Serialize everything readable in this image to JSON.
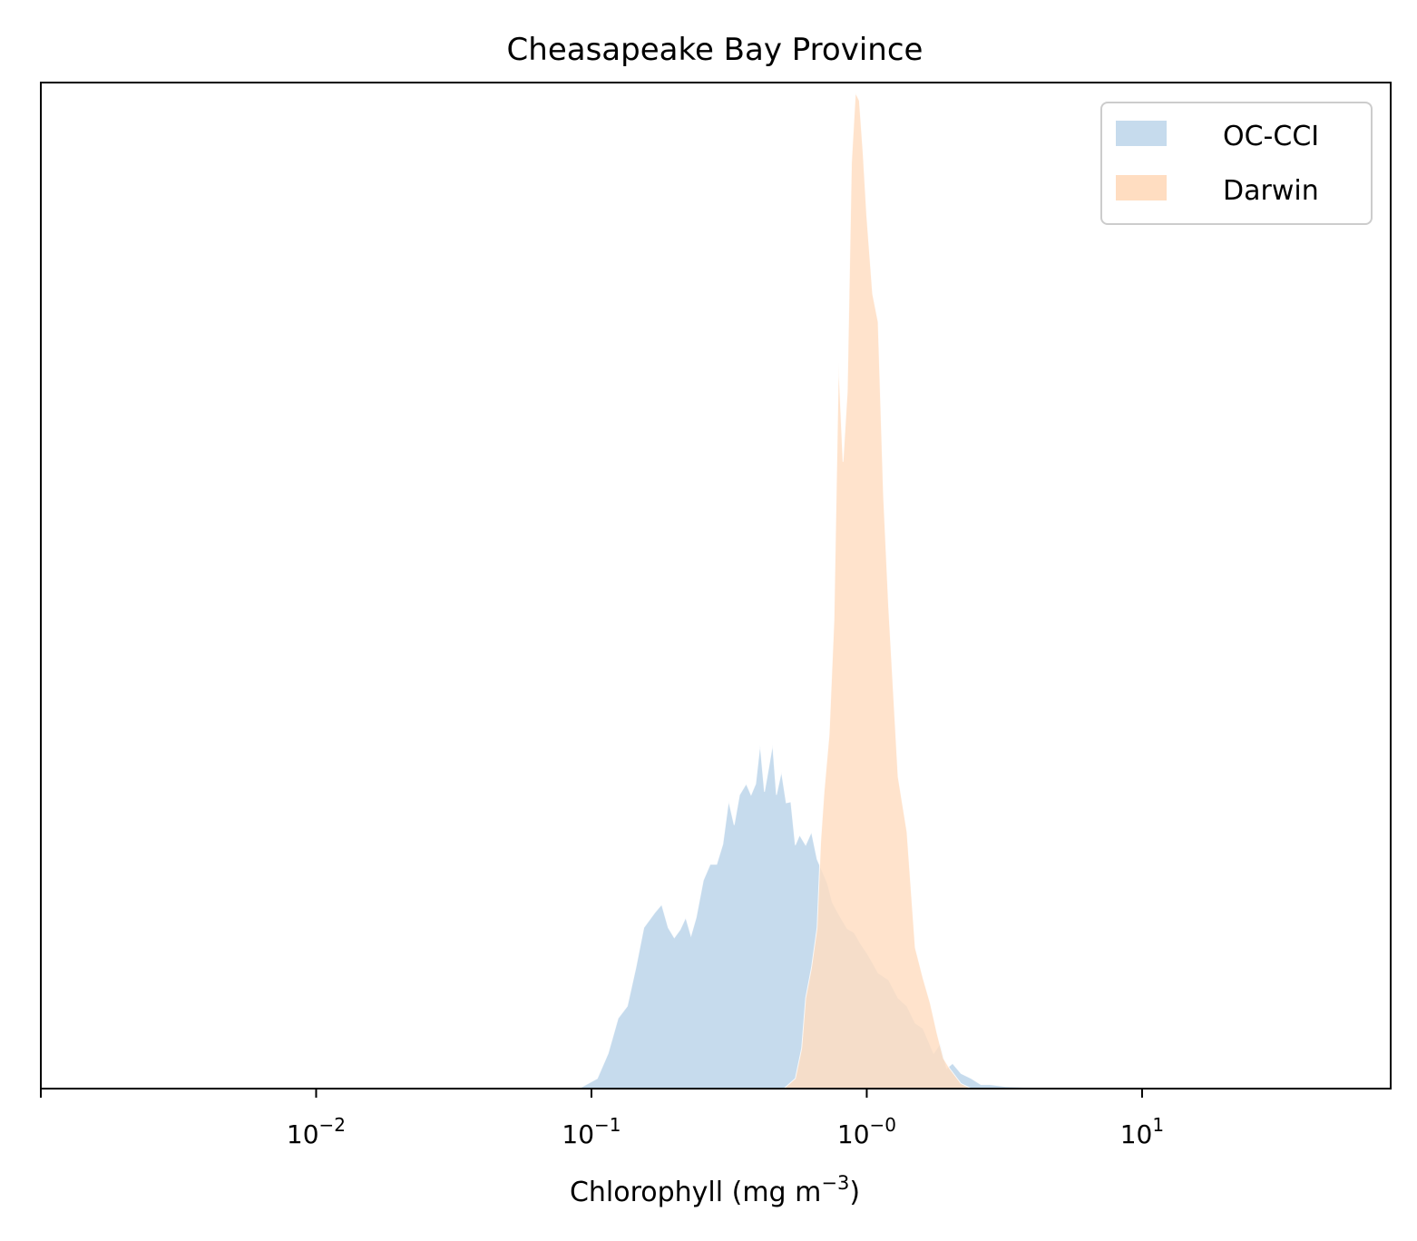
{
  "chart_data": {
    "type": "area",
    "title": "Cheasapeake Bay Province",
    "xlabel": "Chlorophyll  (mg m",
    "xlabel_sup": "−3",
    "xlabel_end": ")",
    "ylabel": "",
    "xscale": "log",
    "xlim": [
      0.001,
      80
    ],
    "ylim": [
      0,
      1
    ],
    "grid": false,
    "legend": "top-right",
    "xticks": [
      {
        "value": 0.01,
        "base": "10",
        "exp": "−2"
      },
      {
        "value": 0.1,
        "base": "10",
        "exp": "−1"
      },
      {
        "value": 1,
        "base": "10",
        "exp": "−0"
      },
      {
        "value": 10,
        "base": "10",
        "exp": "1"
      }
    ],
    "series": [
      {
        "name": "OC-CCI",
        "color": "#c6dbed",
        "points": [
          [
            0.06,
            0.0
          ],
          [
            0.09,
            0.0
          ],
          [
            0.105,
            0.01
          ],
          [
            0.115,
            0.035
          ],
          [
            0.125,
            0.07
          ],
          [
            0.135,
            0.082
          ],
          [
            0.145,
            0.12
          ],
          [
            0.155,
            0.16
          ],
          [
            0.17,
            0.175
          ],
          [
            0.18,
            0.183
          ],
          [
            0.19,
            0.16
          ],
          [
            0.2,
            0.15
          ],
          [
            0.21,
            0.158
          ],
          [
            0.22,
            0.17
          ],
          [
            0.23,
            0.152
          ],
          [
            0.24,
            0.17
          ],
          [
            0.255,
            0.207
          ],
          [
            0.27,
            0.223
          ],
          [
            0.285,
            0.223
          ],
          [
            0.3,
            0.243
          ],
          [
            0.315,
            0.286
          ],
          [
            0.33,
            0.262
          ],
          [
            0.345,
            0.292
          ],
          [
            0.365,
            0.303
          ],
          [
            0.38,
            0.292
          ],
          [
            0.395,
            0.303
          ],
          [
            0.41,
            0.342
          ],
          [
            0.425,
            0.295
          ],
          [
            0.44,
            0.318
          ],
          [
            0.455,
            0.342
          ],
          [
            0.47,
            0.292
          ],
          [
            0.49,
            0.315
          ],
          [
            0.51,
            0.284
          ],
          [
            0.53,
            0.285
          ],
          [
            0.55,
            0.242
          ],
          [
            0.57,
            0.252
          ],
          [
            0.6,
            0.242
          ],
          [
            0.63,
            0.255
          ],
          [
            0.66,
            0.228
          ],
          [
            0.69,
            0.216
          ],
          [
            0.72,
            0.204
          ],
          [
            0.75,
            0.185
          ],
          [
            0.8,
            0.171
          ],
          [
            0.85,
            0.159
          ],
          [
            0.9,
            0.155
          ],
          [
            0.95,
            0.144
          ],
          [
            1.0,
            0.135
          ],
          [
            1.05,
            0.125
          ],
          [
            1.1,
            0.115
          ],
          [
            1.2,
            0.108
          ],
          [
            1.3,
            0.09
          ],
          [
            1.4,
            0.082
          ],
          [
            1.5,
            0.065
          ],
          [
            1.6,
            0.06
          ],
          [
            1.75,
            0.035
          ],
          [
            1.85,
            0.045
          ],
          [
            1.95,
            0.02
          ],
          [
            2.05,
            0.025
          ],
          [
            2.2,
            0.015
          ],
          [
            2.4,
            0.01
          ],
          [
            2.6,
            0.004
          ],
          [
            2.8,
            0.004
          ],
          [
            3.2,
            0.002
          ],
          [
            4,
            0.001
          ],
          [
            6,
            0.0
          ]
        ]
      },
      {
        "name": "Darwin",
        "color": "#ffddc1",
        "points": [
          [
            0.5,
            0.0
          ],
          [
            0.55,
            0.01
          ],
          [
            0.58,
            0.04
          ],
          [
            0.6,
            0.09
          ],
          [
            0.63,
            0.12
          ],
          [
            0.66,
            0.16
          ],
          [
            0.68,
            0.245
          ],
          [
            0.7,
            0.295
          ],
          [
            0.73,
            0.352
          ],
          [
            0.76,
            0.465
          ],
          [
            0.79,
            0.722
          ],
          [
            0.82,
            0.623
          ],
          [
            0.85,
            0.693
          ],
          [
            0.88,
            0.92
          ],
          [
            0.91,
            0.99
          ],
          [
            0.94,
            0.982
          ],
          [
            0.97,
            0.93
          ],
          [
            1.0,
            0.868
          ],
          [
            1.05,
            0.79
          ],
          [
            1.1,
            0.762
          ],
          [
            1.15,
            0.59
          ],
          [
            1.2,
            0.48
          ],
          [
            1.3,
            0.31
          ],
          [
            1.4,
            0.255
          ],
          [
            1.5,
            0.14
          ],
          [
            1.6,
            0.11
          ],
          [
            1.7,
            0.085
          ],
          [
            1.8,
            0.055
          ],
          [
            1.9,
            0.03
          ],
          [
            2.0,
            0.02
          ],
          [
            2.2,
            0.005
          ],
          [
            2.4,
            0.0
          ]
        ]
      }
    ],
    "overlap_color": "#d4c4b4"
  }
}
